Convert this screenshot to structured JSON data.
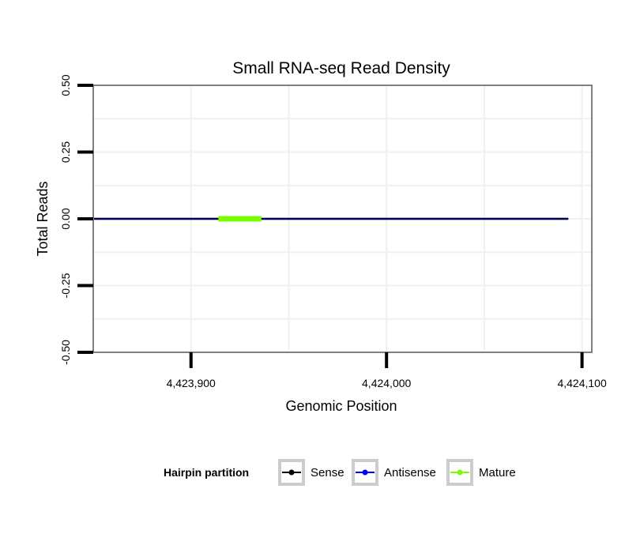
{
  "chart_data": {
    "type": "line",
    "title": "Small RNA-seq Read Density",
    "xlabel": "Genomic Position",
    "ylabel": "Total Reads",
    "xlim": [
      4423850,
      4424105
    ],
    "ylim": [
      -0.5,
      0.5
    ],
    "x_ticks": [
      4423900,
      4424000,
      4424100
    ],
    "x_tick_labels": [
      "4,423,900",
      "4,424,000",
      "4,424,100"
    ],
    "y_ticks": [
      -0.5,
      -0.25,
      0,
      0.25,
      0.5
    ],
    "y_tick_labels": [
      "-0.50",
      "-0.25",
      "0.00",
      "0.25",
      "0.50"
    ],
    "grid": true,
    "legend": {
      "title": "Hairpin partition",
      "position": "bottom",
      "entries": [
        {
          "name": "Sense",
          "color": "#000000"
        },
        {
          "name": "Antisense",
          "color": "#0000ff"
        },
        {
          "name": "Mature",
          "color": "#7cfc00"
        }
      ]
    },
    "series": [
      {
        "name": "Sense",
        "color": "#000000",
        "x": [
          4423844,
          4424093
        ],
        "y": [
          0,
          0
        ]
      },
      {
        "name": "Antisense",
        "color": "#0000ff",
        "x": [
          4423844,
          4424093
        ],
        "y": [
          0,
          0
        ]
      },
      {
        "name": "Mature",
        "color": "#7cfc00",
        "x": [
          4423914,
          4423936
        ],
        "y": [
          0,
          0
        ]
      }
    ]
  }
}
